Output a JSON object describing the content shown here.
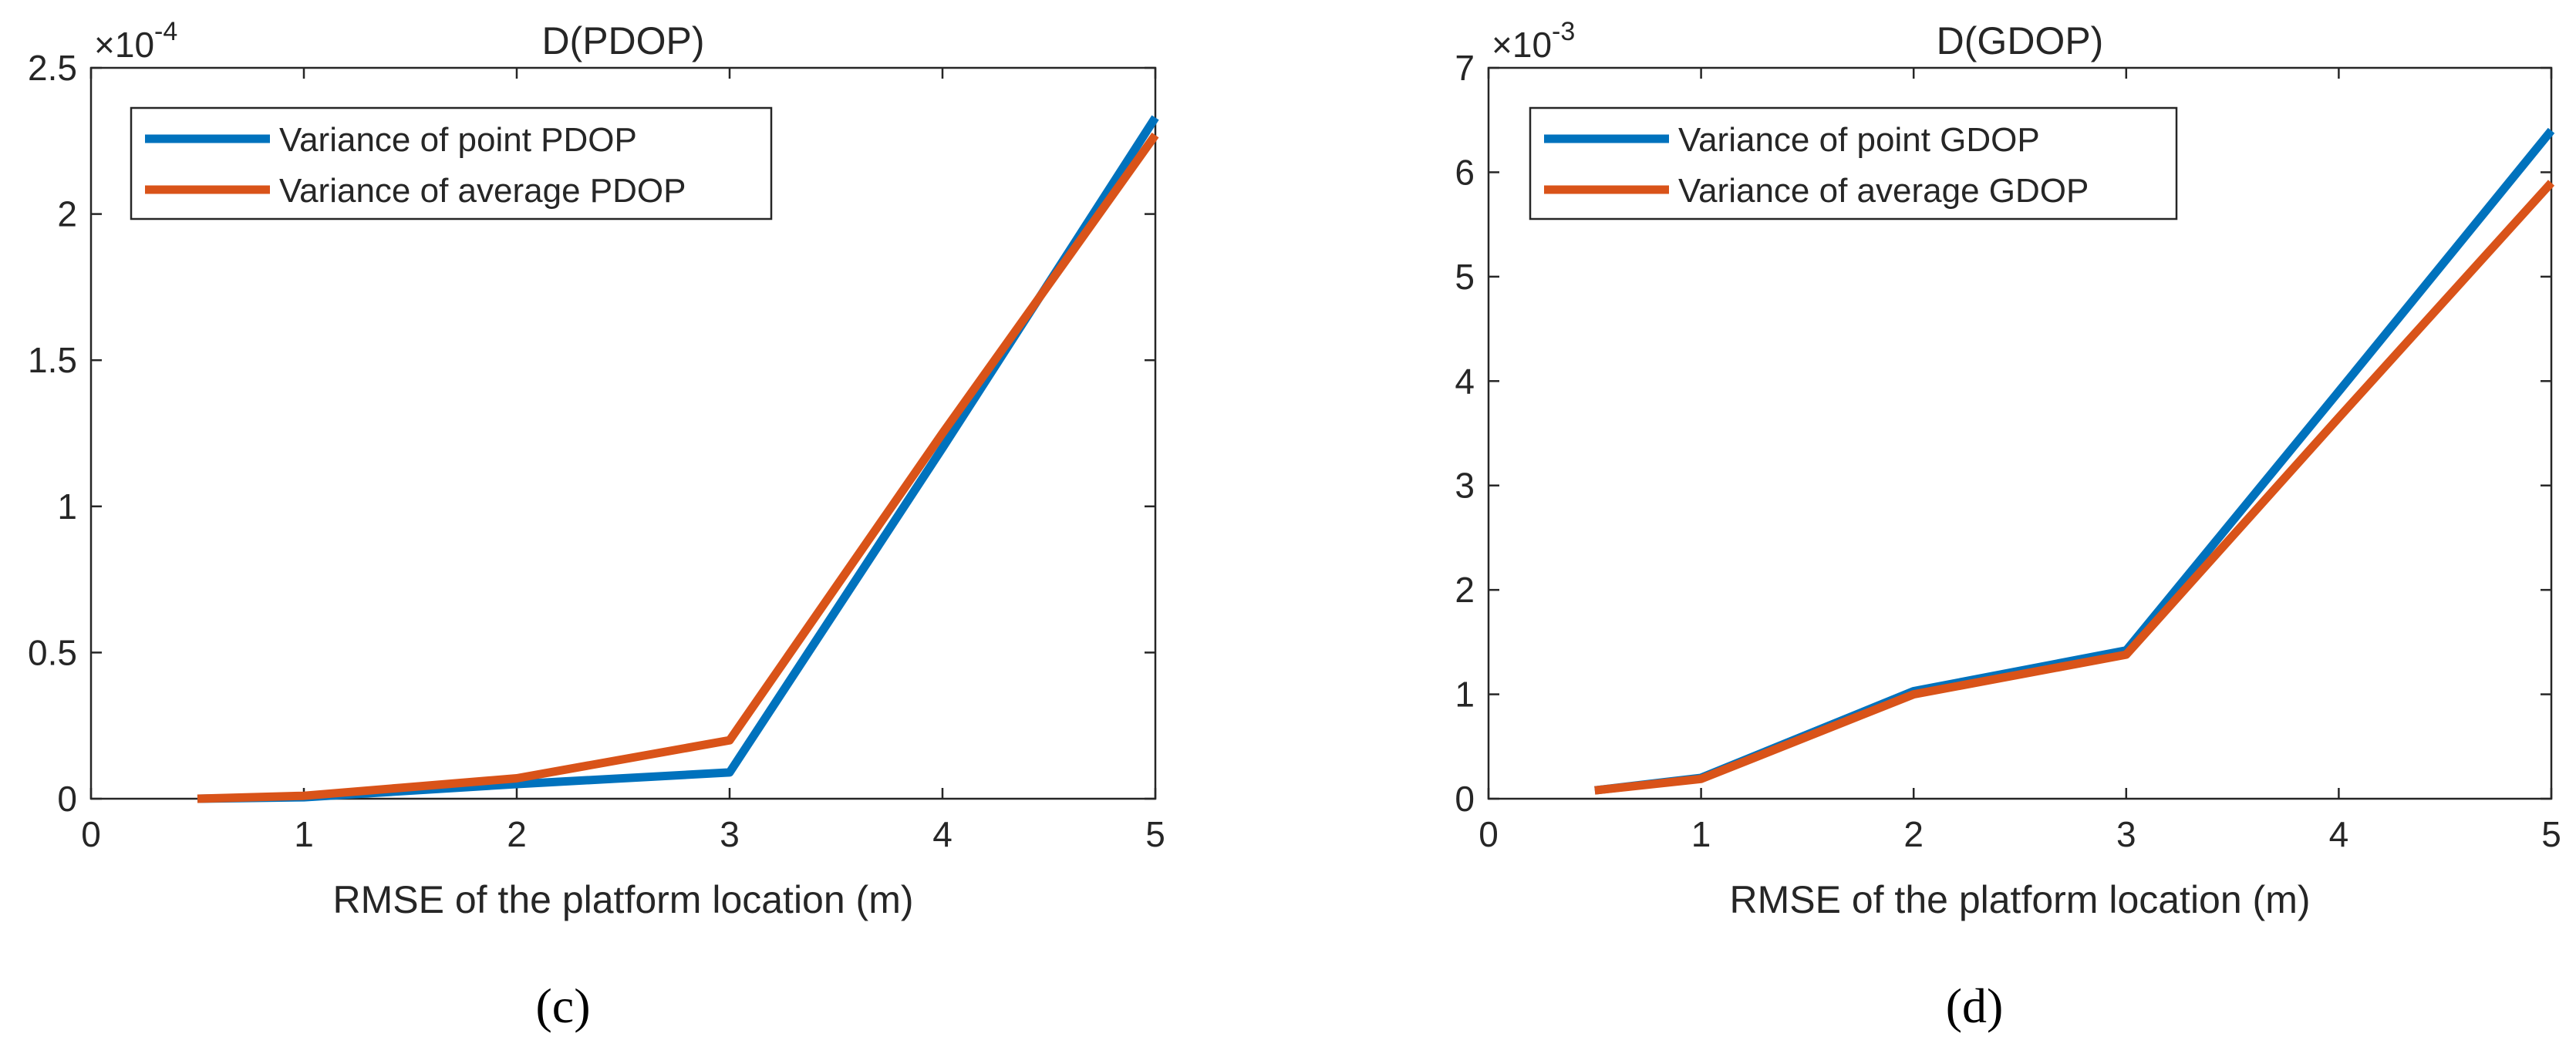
{
  "chart_data": [
    {
      "type": "line",
      "title": "D(PDOP)",
      "xlabel": "RMSE of the platform location (m)",
      "ylabel": "",
      "xlim": [
        0,
        5
      ],
      "ylim": [
        0,
        2.5
      ],
      "xticks": [
        0,
        1,
        2,
        3,
        4,
        5
      ],
      "yticks": [
        0,
        0.5,
        1,
        1.5,
        2,
        2.5
      ],
      "ytick_labels": [
        "0",
        "0.5",
        "1",
        "1.5",
        "2",
        "2.5"
      ],
      "y_multiplier": {
        "base": "×10",
        "exponent": "-4"
      },
      "grid": false,
      "legend_position": "top-left",
      "panel_label": "(c)",
      "series": [
        {
          "name": "Variance of point PDOP",
          "color": "#0072BD",
          "x": [
            0.5,
            1,
            2,
            3,
            4,
            5
          ],
          "y": [
            0.0,
            0.005,
            0.05,
            0.09,
            1.2,
            2.33
          ]
        },
        {
          "name": "Variance of average PDOP",
          "color": "#D95319",
          "x": [
            0.5,
            1,
            2,
            3,
            4,
            5
          ],
          "y": [
            0.0,
            0.01,
            0.07,
            0.2,
            1.25,
            2.27
          ]
        }
      ]
    },
    {
      "type": "line",
      "title": "D(GDOP)",
      "xlabel": "RMSE of the platform location (m)",
      "ylabel": "",
      "xlim": [
        0,
        5
      ],
      "ylim": [
        0,
        7
      ],
      "xticks": [
        0,
        1,
        2,
        3,
        4,
        5
      ],
      "yticks": [
        0,
        1,
        2,
        3,
        4,
        5,
        6,
        7
      ],
      "ytick_labels": [
        "0",
        "1",
        "2",
        "3",
        "4",
        "5",
        "6",
        "7"
      ],
      "y_multiplier": {
        "base": "×10",
        "exponent": "-3"
      },
      "grid": false,
      "legend_position": "top-left",
      "panel_label": "(d)",
      "series": [
        {
          "name": "Variance of point GDOP",
          "color": "#0072BD",
          "x": [
            0.5,
            1,
            2,
            3,
            4,
            5
          ],
          "y": [
            0.08,
            0.2,
            1.03,
            1.42,
            3.9,
            6.4
          ]
        },
        {
          "name": "Variance of average GDOP",
          "color": "#D95319",
          "x": [
            0.5,
            1,
            2,
            3,
            4,
            5
          ],
          "y": [
            0.08,
            0.19,
            1.0,
            1.38,
            3.65,
            5.9
          ]
        }
      ]
    }
  ]
}
